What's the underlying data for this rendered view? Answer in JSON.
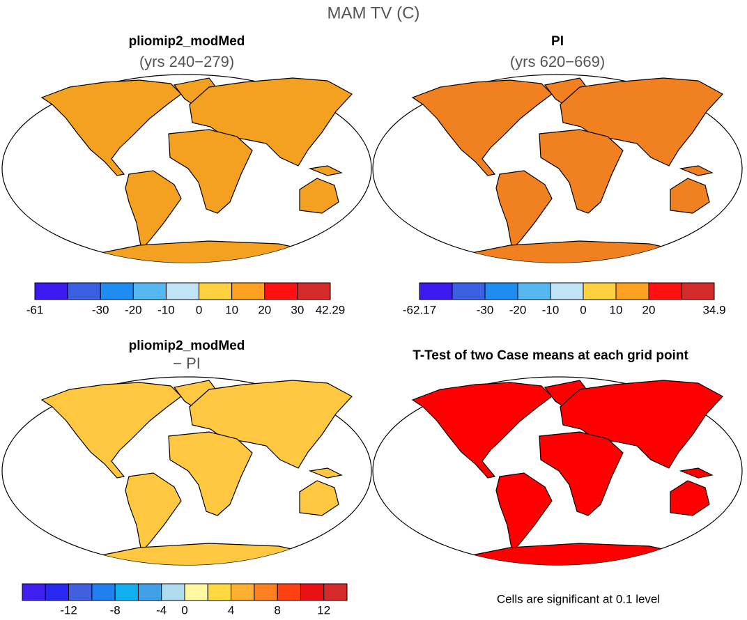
{
  "title": "MAM TV (C)",
  "panels": [
    {
      "title": "pliomip2_modMed",
      "subtitle": "(yrs 240−279)",
      "fill": "#f4a020",
      "colorbar": {
        "colors": [
          "#3c19f0",
          "#3a5fe0",
          "#1e8cf0",
          "#55b8f0",
          "#c0e4f5",
          "#ffd040",
          "#ffa020",
          "#ff1010",
          "#d42a2a"
        ],
        "ticks": [
          -61,
          null,
          -30,
          -20,
          -10,
          0,
          10,
          20,
          30,
          42.29
        ]
      }
    },
    {
      "title": "PI",
      "subtitle": "(yrs 620−669)",
      "fill": "#f08020",
      "colorbar": {
        "colors": [
          "#3c19f0",
          "#3a5fe0",
          "#1e8cf0",
          "#55b8f0",
          "#c0e4f5",
          "#ffd040",
          "#ffa020",
          "#ff1010",
          "#d42a2a"
        ],
        "ticks": [
          -62.17,
          null,
          -30,
          -20,
          -10,
          0,
          10,
          20,
          null,
          34.9
        ]
      }
    },
    {
      "title": "pliomip2_modMed",
      "subtitle": "− PI",
      "fill": "#ffc840",
      "colorbar": {
        "colors": [
          "#4020f0",
          "#2828f0",
          "#4060e0",
          "#2080f0",
          "#10b0f0",
          "#40a0e8",
          "#b0dcf0",
          "#fff8a0",
          "#ffd840",
          "#ffb030",
          "#ff8020",
          "#ff4010",
          "#e81010",
          "#d42a2a"
        ],
        "ticks": [
          null,
          null,
          -12,
          null,
          -8,
          null,
          -4,
          0,
          null,
          4,
          null,
          8,
          null,
          12,
          null
        ]
      }
    },
    {
      "title": "T-Test of two Case means at each grid point",
      "fill": "#ff0000"
    }
  ],
  "footnote": "Cells are significant at 0.1 level"
}
